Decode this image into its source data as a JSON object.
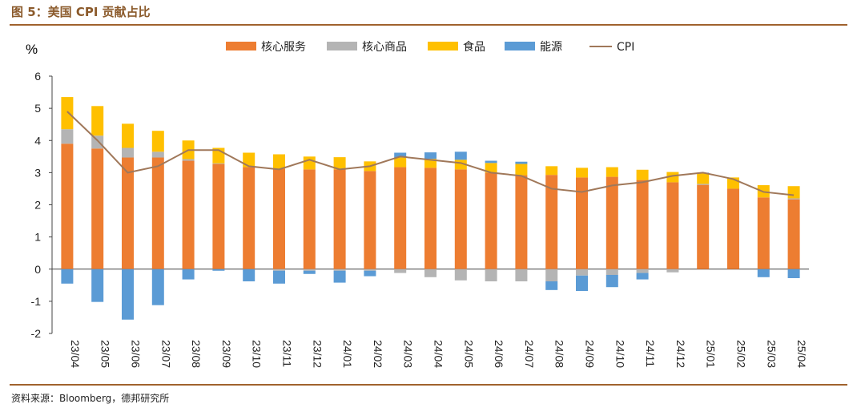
{
  "figure": {
    "title": "图 5：美国 CPI 贡献占比",
    "source": "资料来源：Bloomberg，德邦研究所"
  },
  "chart_data": {
    "type": "bar",
    "stacked": true,
    "unit_label": "%",
    "categories": [
      "23/04",
      "23/05",
      "23/06",
      "23/07",
      "23/08",
      "23/09",
      "23/10",
      "23/11",
      "23/12",
      "24/01",
      "24/02",
      "24/03",
      "24/04",
      "24/05",
      "24/06",
      "24/07",
      "24/08",
      "24/09",
      "24/10",
      "24/11",
      "24/12",
      "25/01",
      "25/02",
      "25/03",
      "25/04"
    ],
    "ylim": [
      -2,
      6
    ],
    "yticks": [
      -2,
      -1,
      0,
      1,
      2,
      3,
      4,
      5,
      6
    ],
    "grid": false,
    "legend_position": "top-center",
    "series": [
      {
        "name": "核心服务",
        "color": "#ED7D31",
        "values": [
          3.9,
          3.75,
          3.47,
          3.47,
          3.37,
          3.27,
          3.17,
          3.12,
          3.1,
          3.1,
          3.05,
          3.17,
          3.15,
          3.1,
          3.0,
          2.92,
          2.93,
          2.85,
          2.87,
          2.77,
          2.7,
          2.62,
          2.5,
          2.23,
          2.17
        ]
      },
      {
        "name": "核心商品",
        "color": "#B4B4B4",
        "values": [
          0.45,
          0.4,
          0.3,
          0.18,
          0.05,
          0.02,
          0.0,
          -0.05,
          -0.05,
          -0.05,
          -0.05,
          -0.12,
          -0.25,
          -0.35,
          -0.38,
          -0.38,
          -0.38,
          -0.2,
          -0.18,
          -0.12,
          -0.1,
          0.03,
          0.0,
          0.0,
          0.03
        ]
      },
      {
        "name": "食品",
        "color": "#FFC000",
        "values": [
          1.0,
          0.92,
          0.75,
          0.65,
          0.58,
          0.48,
          0.45,
          0.45,
          0.4,
          0.38,
          0.3,
          0.3,
          0.28,
          0.3,
          0.3,
          0.35,
          0.27,
          0.3,
          0.3,
          0.32,
          0.32,
          0.33,
          0.35,
          0.38,
          0.38
        ]
      },
      {
        "name": "能源",
        "color": "#5B9BD5",
        "values": [
          -0.45,
          -1.02,
          -1.57,
          -1.12,
          -0.32,
          -0.05,
          -0.38,
          -0.4,
          -0.1,
          -0.37,
          -0.17,
          0.15,
          0.2,
          0.25,
          0.07,
          0.07,
          -0.27,
          -0.48,
          -0.38,
          -0.2,
          0.0,
          0.02,
          0.0,
          -0.25,
          -0.28
        ]
      }
    ],
    "line": {
      "name": "CPI",
      "color": "#A0785A",
      "values": [
        4.9,
        4.0,
        3.0,
        3.2,
        3.7,
        3.7,
        3.2,
        3.1,
        3.4,
        3.1,
        3.2,
        3.5,
        3.4,
        3.3,
        3.0,
        2.9,
        2.5,
        2.4,
        2.6,
        2.7,
        2.9,
        3.0,
        2.8,
        2.4,
        2.3
      ]
    }
  }
}
